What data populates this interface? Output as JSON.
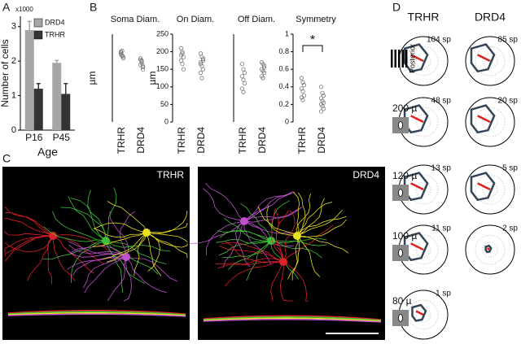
{
  "panel_labels": [
    "A",
    "B",
    "C",
    "D"
  ],
  "chart_data": [
    {
      "type": "bar",
      "ylabel": "Number of cells",
      "multiplier": "x1000",
      "xlabel": "Age",
      "categories": [
        "P16",
        "P45"
      ],
      "series": [
        {
          "name": "DRD4",
          "color": "#a6a6a6",
          "values": [
            2.9,
            1.95
          ],
          "errors": [
            0.25,
            0.07
          ]
        },
        {
          "name": "TRHR",
          "color": "#333333",
          "values": [
            1.2,
            1.05
          ],
          "errors": [
            0.15,
            0.3
          ]
        }
      ],
      "ylim": [
        0,
        3.3
      ],
      "yticks": [
        0,
        1,
        2,
        3
      ],
      "legend": "upper right"
    },
    {
      "type": "strip",
      "title": "Soma Diam.",
      "ylabel": "µm",
      "categories": [
        "TRHR",
        "DRD4"
      ],
      "values": [
        [
          15.5,
          15,
          14.8,
          16,
          15.2,
          14.5,
          15.8,
          16.2
        ],
        [
          13,
          14,
          12.5,
          14.5,
          13.5,
          12,
          14.2,
          13.8,
          12.8
        ]
      ],
      "ylim": [
        0,
        20
      ]
    },
    {
      "type": "strip",
      "title": "On Diam.",
      "ylabel": "µm",
      "categories": [
        "TRHR",
        "DRD4"
      ],
      "values": [
        [
          210,
          195,
          185,
          175,
          165,
          150,
          190,
          200
        ],
        [
          195,
          185,
          175,
          165,
          160,
          150,
          140,
          125,
          180,
          170
        ]
      ],
      "ylim": [
        0,
        250
      ],
      "yticks": [
        0,
        50,
        100,
        150,
        200,
        250
      ]
    },
    {
      "type": "strip",
      "title": "Off Diam.",
      "categories": [
        "TRHR",
        "DRD4"
      ],
      "values": [
        [
          165,
          150,
          140,
          130,
          120,
          110,
          95,
          85
        ],
        [
          170,
          165,
          155,
          150,
          145,
          140,
          130,
          125,
          160
        ]
      ],
      "ylim": [
        0,
        250
      ]
    },
    {
      "type": "strip",
      "title": "Symmetry",
      "categories": [
        "TRHR",
        "DRD4"
      ],
      "values": [
        [
          0.5,
          0.45,
          0.42,
          0.38,
          0.35,
          0.3,
          0.28,
          0.25
        ],
        [
          0.4,
          0.33,
          0.3,
          0.27,
          0.24,
          0.22,
          0.2,
          0.18,
          0.15,
          0.12
        ]
      ],
      "ylim": [
        0,
        1
      ],
      "yticks": [
        0,
        0.2,
        0.4,
        0.6,
        0.8,
        1
      ],
      "annotation": "*"
    }
  ],
  "images": {
    "labels": [
      "TRHR",
      "DRD4"
    ]
  },
  "polar": {
    "headers": [
      "TRHR",
      "DRD4"
    ],
    "direction": "Posterior",
    "rows": [
      {
        "labels": [
          "104 sp",
          "85 sp"
        ]
      },
      {
        "stimulus": "200 µ",
        "labels": [
          "48 sp",
          "20 sp"
        ]
      },
      {
        "stimulus": "120 µ",
        "labels": [
          "13 sp",
          "5 sp"
        ]
      },
      {
        "stimulus": "100 µ",
        "labels": [
          "11 sp",
          "2 sp"
        ]
      },
      {
        "stimulus": "80 µ",
        "labels": [
          "1 sp"
        ]
      }
    ]
  }
}
